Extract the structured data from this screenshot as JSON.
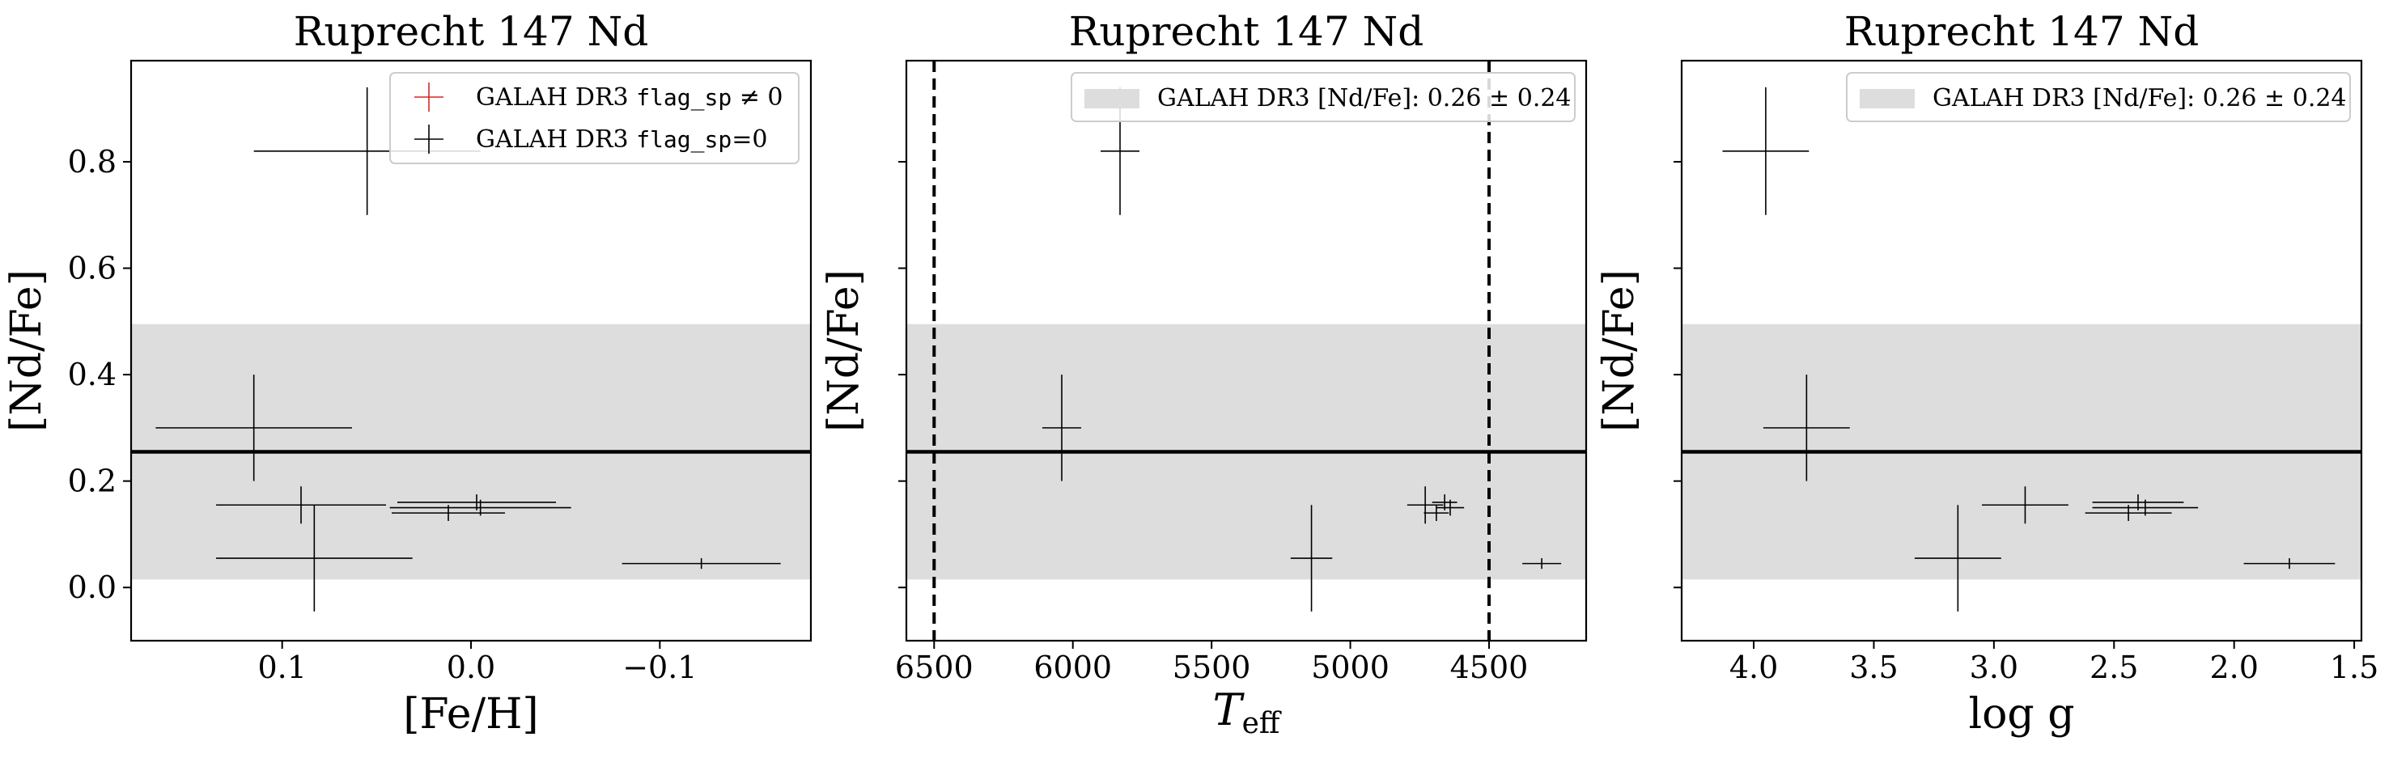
{
  "colors": {
    "band": "#dddddd",
    "flagged": "#d62728",
    "unflagged": "#000000",
    "mean_line": "#000000"
  },
  "chart_data": [
    {
      "type": "scatter",
      "title": "Ruprecht 147 Nd",
      "xlabel": "[Fe/H]",
      "ylabel": "[Nd/Fe]",
      "xlim": [
        0.18,
        -0.18
      ],
      "ylim": [
        -0.1,
        0.99
      ],
      "xticks": [
        0.1,
        0.0,
        -0.1
      ],
      "xtick_labels": [
        "0.1",
        "0.0",
        "−0.1"
      ],
      "yticks": [
        0.0,
        0.2,
        0.4,
        0.6,
        0.8
      ],
      "ytick_labels": [
        "0.0",
        "0.2",
        "0.4",
        "0.6",
        "0.8"
      ],
      "mean": 0.255,
      "band": [
        0.015,
        0.495
      ],
      "legend": {
        "placement": "upper right",
        "entries": [
          {
            "marker": "flagged",
            "label_prefix": "GALAH DR3 ",
            "label_code": "flag_sp",
            "label_suffix": " ≠ 0"
          },
          {
            "marker": "unflagged",
            "label_prefix": "GALAH DR3 ",
            "label_code": "flag_sp",
            "label_suffix": "=0"
          }
        ]
      },
      "points": [
        {
          "x": 0.055,
          "y": 0.82,
          "xerr": 0.06,
          "yerr": 0.12,
          "flag": 0
        },
        {
          "x": 0.115,
          "y": 0.3,
          "xerr": 0.052,
          "yerr": 0.1,
          "flag": 0
        },
        {
          "x": 0.09,
          "y": 0.155,
          "xerr": 0.045,
          "yerr": 0.035,
          "flag": 0
        },
        {
          "x": 0.083,
          "y": 0.055,
          "xerr": 0.052,
          "yerr": 0.1,
          "flag": 0
        },
        {
          "x": -0.003,
          "y": 0.16,
          "xerr": 0.042,
          "yerr": 0.015,
          "flag": 0
        },
        {
          "x": 0.012,
          "y": 0.14,
          "xerr": 0.03,
          "yerr": 0.015,
          "flag": 0
        },
        {
          "x": -0.005,
          "y": 0.15,
          "xerr": 0.048,
          "yerr": 0.015,
          "flag": 0
        },
        {
          "x": -0.122,
          "y": 0.045,
          "xerr": 0.042,
          "yerr": 0.01,
          "flag": 0
        }
      ]
    },
    {
      "type": "scatter",
      "title": "Ruprecht 147 Nd",
      "xlabel_main": "T",
      "xlabel_sub": "eff",
      "ylabel": "[Nd/Fe]",
      "xlim": [
        6600,
        4150
      ],
      "ylim": [
        -0.1,
        0.99
      ],
      "xticks": [
        6500,
        6000,
        5500,
        5000,
        4500
      ],
      "xtick_labels": [
        "6500",
        "6000",
        "5500",
        "5000",
        "4500"
      ],
      "yticks": [
        0.0,
        0.2,
        0.4,
        0.6,
        0.8
      ],
      "ytick_labels": [],
      "mean": 0.255,
      "band": [
        0.015,
        0.495
      ],
      "vlines": [
        6500,
        4500
      ],
      "legend": {
        "placement": "upper right",
        "entries": [
          {
            "marker": "band",
            "label_prefix": "GALAH DR3 [Nd/Fe]: 0.26 ± 0.24"
          }
        ]
      },
      "points": [
        {
          "x": 5830,
          "y": 0.82,
          "xerr": 70,
          "yerr": 0.12,
          "flag": 0
        },
        {
          "x": 6040,
          "y": 0.3,
          "xerr": 70,
          "yerr": 0.1,
          "flag": 0
        },
        {
          "x": 5140,
          "y": 0.055,
          "xerr": 75,
          "yerr": 0.1,
          "flag": 0
        },
        {
          "x": 4730,
          "y": 0.155,
          "xerr": 65,
          "yerr": 0.035,
          "flag": 0
        },
        {
          "x": 4660,
          "y": 0.16,
          "xerr": 45,
          "yerr": 0.015,
          "flag": 0
        },
        {
          "x": 4690,
          "y": 0.14,
          "xerr": 45,
          "yerr": 0.015,
          "flag": 0
        },
        {
          "x": 4640,
          "y": 0.15,
          "xerr": 50,
          "yerr": 0.015,
          "flag": 0
        },
        {
          "x": 4310,
          "y": 0.045,
          "xerr": 70,
          "yerr": 0.01,
          "flag": 0
        }
      ]
    },
    {
      "type": "scatter",
      "title": "Ruprecht 147 Nd",
      "xlabel": "log g",
      "ylabel": "[Nd/Fe]",
      "xlim": [
        4.3,
        1.47
      ],
      "ylim": [
        -0.1,
        0.99
      ],
      "xticks": [
        4.0,
        3.5,
        3.0,
        2.5,
        2.0,
        1.5
      ],
      "xtick_labels": [
        "4.0",
        "3.5",
        "3.0",
        "2.5",
        "2.0",
        "1.5"
      ],
      "yticks": [
        0.0,
        0.2,
        0.4,
        0.6,
        0.8
      ],
      "ytick_labels": [],
      "mean": 0.255,
      "band": [
        0.015,
        0.495
      ],
      "legend": {
        "placement": "upper right",
        "entries": [
          {
            "marker": "band",
            "label_prefix": "GALAH DR3 [Nd/Fe]: 0.26 ± 0.24"
          }
        ]
      },
      "points": [
        {
          "x": 3.95,
          "y": 0.82,
          "xerr": 0.18,
          "yerr": 0.12,
          "flag": 0
        },
        {
          "x": 3.78,
          "y": 0.3,
          "xerr": 0.18,
          "yerr": 0.1,
          "flag": 0
        },
        {
          "x": 2.87,
          "y": 0.155,
          "xerr": 0.18,
          "yerr": 0.035,
          "flag": 0
        },
        {
          "x": 3.15,
          "y": 0.055,
          "xerr": 0.18,
          "yerr": 0.1,
          "flag": 0
        },
        {
          "x": 2.4,
          "y": 0.16,
          "xerr": 0.19,
          "yerr": 0.015,
          "flag": 0
        },
        {
          "x": 2.44,
          "y": 0.14,
          "xerr": 0.18,
          "yerr": 0.015,
          "flag": 0
        },
        {
          "x": 2.37,
          "y": 0.15,
          "xerr": 0.22,
          "yerr": 0.015,
          "flag": 0
        },
        {
          "x": 1.77,
          "y": 0.045,
          "xerr": 0.19,
          "yerr": 0.01,
          "flag": 0
        }
      ]
    }
  ]
}
